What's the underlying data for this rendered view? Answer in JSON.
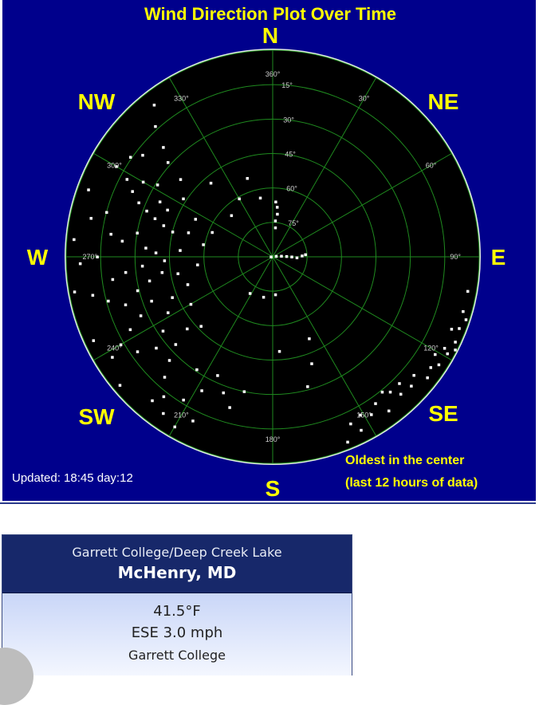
{
  "chart_data": {
    "type": "scatter",
    "subtype": "polar",
    "title": "Wind Direction Plot Over Time",
    "compass_labels": [
      "N",
      "NE",
      "E",
      "SE",
      "S",
      "SW",
      "W",
      "NW"
    ],
    "direction_tick_labels": [
      "360°",
      "30°",
      "60°",
      "90°",
      "120°",
      "150°",
      "180°",
      "210°",
      "240°",
      "270°",
      "300°",
      "330°"
    ],
    "ring_labels": [
      "15°",
      "30°",
      "45°",
      "60°",
      "75°"
    ],
    "note_line1": "Oldest in the center",
    "note_line2": "(last 12 hours of data)",
    "updated": "Updated: 18:45 day:12",
    "hours_range": [
      0,
      12
    ],
    "grid": true,
    "colors": {
      "background": "#00008c",
      "plot": "#000000",
      "grid": "#1f8a1f",
      "points": "#ffffff",
      "labels": "#ffff00"
    },
    "points": [
      [
        80,
        0.2
      ],
      [
        85,
        0.5
      ],
      [
        88,
        0.8
      ],
      [
        90,
        1.1
      ],
      [
        92,
        1.4
      ],
      [
        88,
        1.7
      ],
      [
        86,
        1.9
      ],
      [
        270,
        0.1
      ],
      [
        5,
        1.7
      ],
      [
        4,
        2.1
      ],
      [
        6,
        2.5
      ],
      [
        5,
        2.9
      ],
      [
        3,
        3.2
      ],
      [
        342,
        4.8
      ],
      [
        315,
        3.4
      ],
      [
        348,
        3.5
      ],
      [
        330,
        3.9
      ],
      [
        320,
        5.6
      ],
      [
        176,
        2.2
      ],
      [
        193,
        2.4
      ],
      [
        212,
        2.5
      ],
      [
        176,
        5.5
      ],
      [
        165,
        7.8
      ],
      [
        160,
        6.6
      ],
      [
        156,
        5.2
      ],
      [
        100,
        11.5
      ],
      [
        106,
        11.5
      ],
      [
        111,
        11.6
      ],
      [
        115,
        11.7
      ],
      [
        117,
        11.9
      ],
      [
        119,
        11.6
      ],
      [
        123,
        11.5
      ],
      [
        125,
        11.2
      ],
      [
        121,
        11.0
      ],
      [
        118,
        11.3
      ],
      [
        130,
        10.7
      ],
      [
        128,
        11.4
      ],
      [
        135,
        10.4
      ],
      [
        133,
        11.0
      ],
      [
        139,
        10.4
      ],
      [
        137,
        10.9
      ],
      [
        141,
        10.1
      ],
      [
        145,
        10.4
      ],
      [
        143,
        11.2
      ],
      [
        148,
        10.8
      ],
      [
        151,
        10.5
      ],
      [
        155,
        10.7
      ],
      [
        153,
        11.3
      ],
      [
        158,
        11.6
      ],
      [
        112,
        11.2
      ],
      [
        108,
        11.8
      ],
      [
        300,
        10.5
      ],
      [
        305,
        10.1
      ],
      [
        298,
        9.6
      ],
      [
        295,
        9.0
      ],
      [
        292,
        8.4
      ],
      [
        290,
        7.8
      ],
      [
        288,
        7.2
      ],
      [
        286,
        6.6
      ],
      [
        284,
        6.0
      ],
      [
        300,
        8.7
      ],
      [
        302,
        7.9
      ],
      [
        296,
        7.3
      ],
      [
        294,
        6.7
      ],
      [
        303,
        6.2
      ],
      [
        310,
        7.0
      ],
      [
        312,
        8.2
      ],
      [
        315,
        9.0
      ],
      [
        308,
        9.6
      ],
      [
        318,
        10.2
      ],
      [
        322,
        11.2
      ],
      [
        282,
        10.8
      ],
      [
        285,
        10.0
      ],
      [
        278,
        9.5
      ],
      [
        276,
        8.8
      ],
      [
        280,
        8.0
      ],
      [
        274,
        7.4
      ],
      [
        272,
        6.8
      ],
      [
        268,
        6.3
      ],
      [
        266,
        7.6
      ],
      [
        264,
        8.6
      ],
      [
        262,
        9.4
      ],
      [
        270,
        10.2
      ],
      [
        268,
        11.2
      ],
      [
        258,
        10.7
      ],
      [
        255,
        9.9
      ],
      [
        252,
        9.0
      ],
      [
        256,
        8.1
      ],
      [
        259,
        7.3
      ],
      [
        262,
        6.5
      ],
      [
        250,
        7.5
      ],
      [
        246,
        8.4
      ],
      [
        243,
        9.3
      ],
      [
        240,
        10.2
      ],
      [
        238,
        11.0
      ],
      [
        235,
        9.6
      ],
      [
        232,
        8.6
      ],
      [
        236,
        7.7
      ],
      [
        242,
        6.9
      ],
      [
        248,
        6.3
      ],
      [
        228,
        7.6
      ],
      [
        225,
        8.5
      ],
      [
        222,
        9.4
      ],
      [
        218,
        10.3
      ],
      [
        215,
        11.1
      ],
      [
        220,
        10.9
      ],
      [
        212,
        9.8
      ],
      [
        208,
        8.8
      ],
      [
        214,
        7.9
      ],
      [
        205,
        7.6
      ],
      [
        200,
        8.4
      ],
      [
        196,
        9.1
      ],
      [
        192,
        8.0
      ],
      [
        230,
        6.5
      ],
      [
        226,
        5.8
      ],
      [
        240,
        5.5
      ],
      [
        252,
        5.2
      ],
      [
        260,
        5.6
      ],
      [
        274,
        5.4
      ],
      [
        286,
        5.1
      ],
      [
        296,
        5.0
      ],
      [
        292,
        3.8
      ],
      [
        280,
        4.1
      ],
      [
        264,
        4.4
      ],
      [
        206,
        10.6
      ],
      [
        210,
        11.4
      ],
      [
        230,
        11.6
      ],
      [
        245,
        11.5
      ],
      [
        260,
        11.7
      ],
      [
        275,
        11.6
      ],
      [
        290,
        11.4
      ]
    ]
  },
  "station_card": {
    "subtitle": "Garrett College/Deep Creek Lake",
    "title": "McHenry, MD",
    "temperature": "41.5°F",
    "wind": "ESE 3.0 mph",
    "site": "Garrett College"
  }
}
